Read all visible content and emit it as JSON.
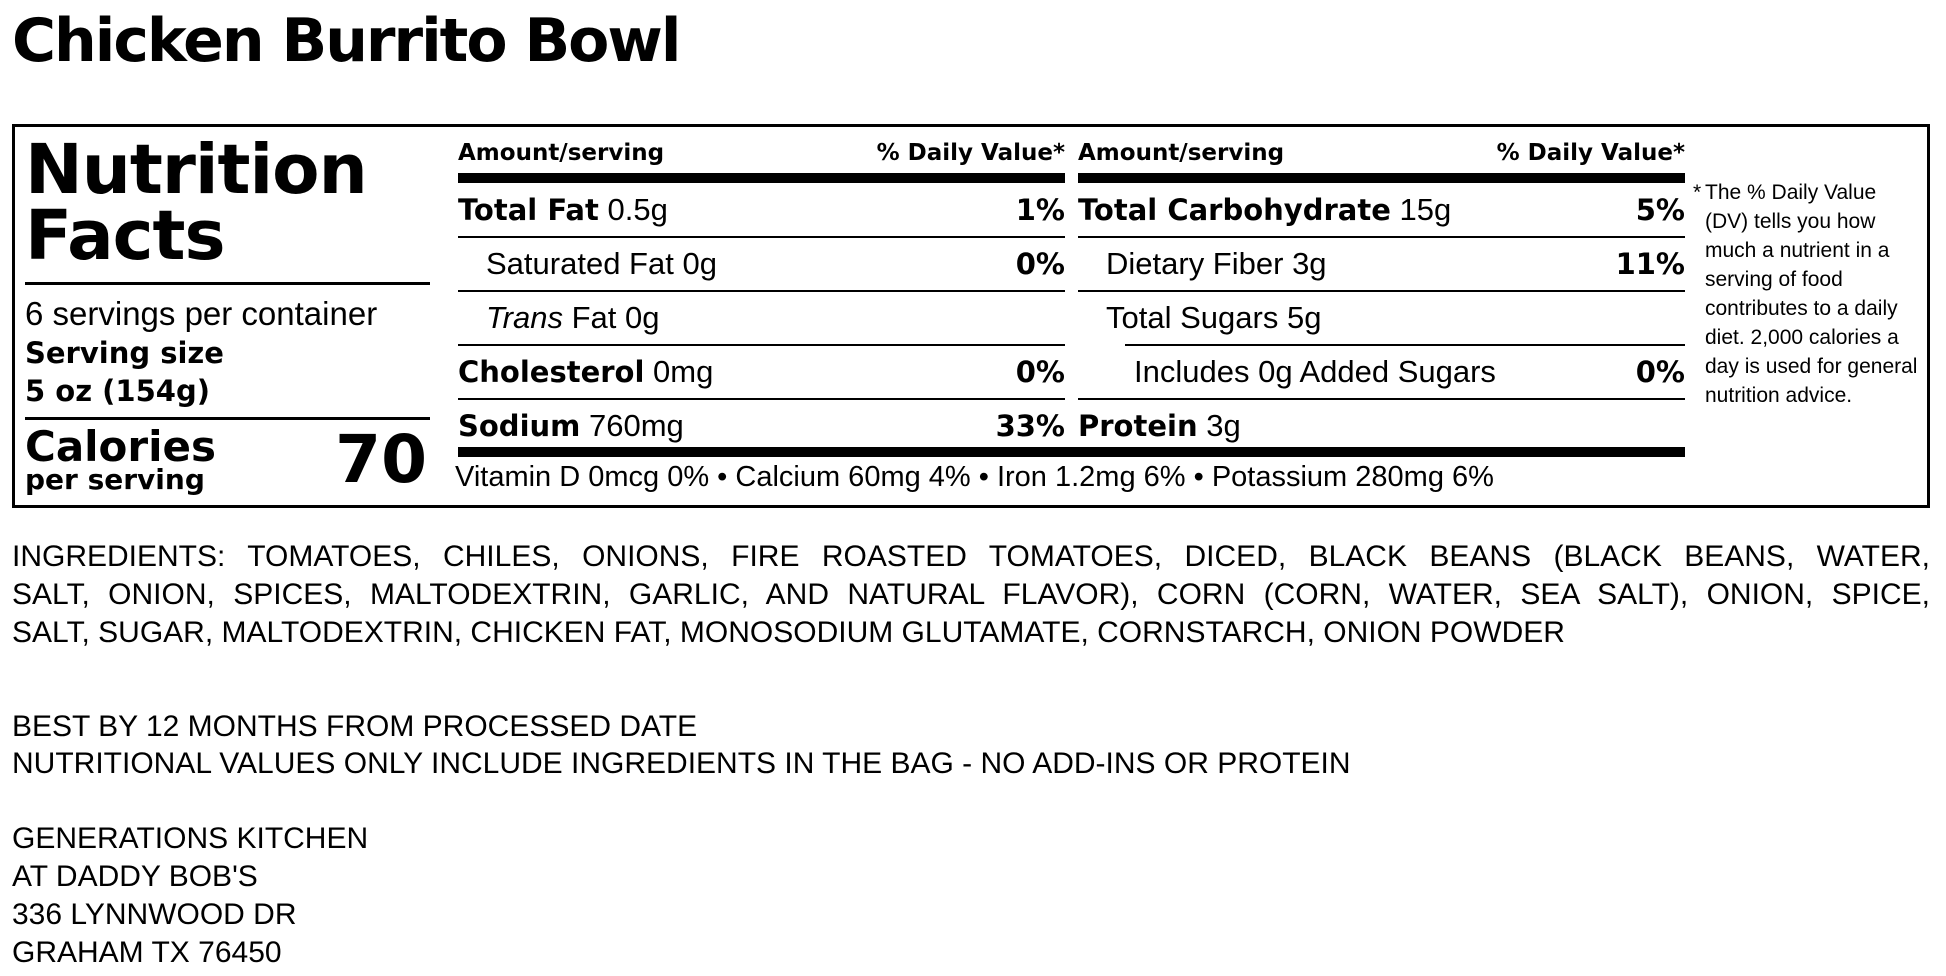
{
  "title": "Chicken Burrito Bowl",
  "label": {
    "heading_line1": "Nutrition",
    "heading_line2": "Facts",
    "servings_per_container": "6 servings per container",
    "serving_size_label": "Serving size",
    "serving_size_value": "5 oz (154g)",
    "calories_label": "Calories",
    "calories_sub": "per serving",
    "calories_value": "70",
    "col_header_amount": "Amount/serving",
    "col_header_dv": "% Daily Value*",
    "left_rows": [
      {
        "name": "Total Fat",
        "amount": "0.5g",
        "dv": "1%"
      },
      {
        "name": "Saturated Fat",
        "amount": "0g",
        "dv": "0%"
      },
      {
        "name_italic": "Trans",
        "name": "Fat",
        "amount": "0g",
        "dv": ""
      },
      {
        "name": "Cholesterol",
        "amount": "0mg",
        "dv": "0%"
      },
      {
        "name": "Sodium",
        "amount": "760mg",
        "dv": "33%"
      }
    ],
    "right_rows": [
      {
        "name": "Total Carbohydrate",
        "amount": "15g",
        "dv": "5%"
      },
      {
        "name": "Dietary Fiber",
        "amount": "3g",
        "dv": "11%"
      },
      {
        "name": "Total Sugars",
        "amount": "5g",
        "dv": ""
      },
      {
        "name": "Includes 0g Added Sugars",
        "amount": "",
        "dv": "0%"
      },
      {
        "name": "Protein",
        "amount": "3g",
        "dv": ""
      }
    ],
    "vitamins": "Vitamin D 0mcg 0% • Calcium 60mg 4% • Iron 1.2mg 6% • Potassium 280mg 6%",
    "footnote_star": "*",
    "footnote": "The % Daily Value (DV) tells you how much a nutrient in a serving of food contributes to a daily diet. 2,000 calories a day is used for general nutrition advice."
  },
  "ingredients": {
    "line1": "INGREDIENTS: TOMATOES, CHILES, ONIONS, FIRE ROASTED TOMATOES, DICED, BLACK BEANS (BLACK BEANS, WATER,",
    "line2": "SALT, ONION, SPICES, MALTODEXTRIN, GARLIC, AND NATURAL FLAVOR), CORN (CORN, WATER, SEA SALT), ONION, SPICE,",
    "line3": "SALT, SUGAR, MALTODEXTRIN, CHICKEN FAT, MONOSODIUM GLUTAMATE, CORNSTARCH, ONION POWDER"
  },
  "notes": {
    "best_by": "BEST BY 12 MONTHS FROM PROCESSED DATE",
    "nutrition_note": "NUTRITIONAL VALUES ONLY INCLUDE INGREDIENTS IN THE BAG - NO ADD-INS OR PROTEIN"
  },
  "address": {
    "line1": "GENERATIONS KITCHEN",
    "line2": "AT DADDY BOB'S",
    "line3": "336 LYNNWOOD DR",
    "line4": "GRAHAM TX 76450"
  }
}
